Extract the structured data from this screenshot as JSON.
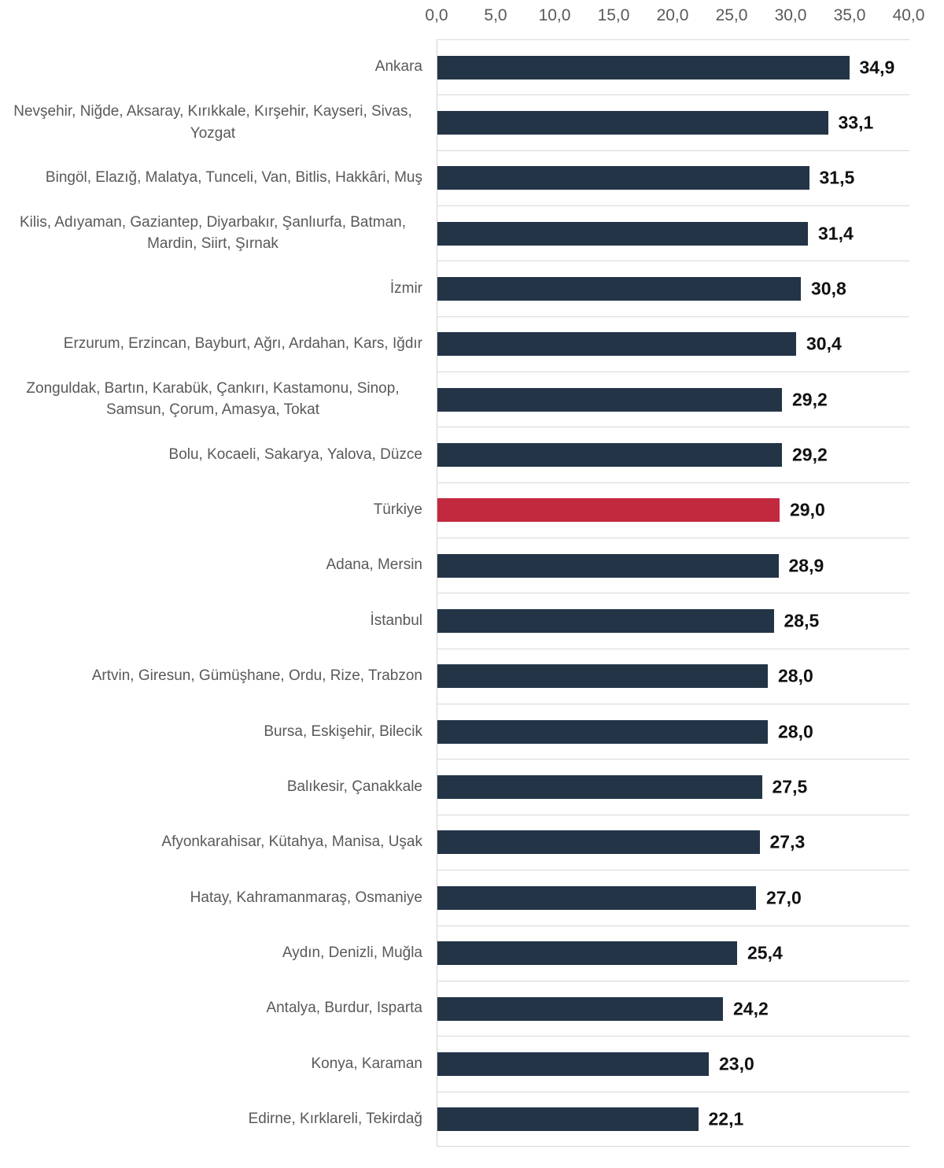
{
  "chart_data": {
    "type": "bar",
    "orientation": "horizontal",
    "title": "",
    "xlabel": "",
    "ylabel": "",
    "xlim": [
      0,
      40
    ],
    "x_ticks": [
      "0,0",
      "5,0",
      "10,0",
      "15,0",
      "20,0",
      "25,0",
      "30,0",
      "35,0",
      "40,0"
    ],
    "grid": "horizontal category separators",
    "legend": "none",
    "categories": [
      "Ankara",
      "Nevşehir, Niğde, Aksaray, Kırıkkale, Kırşehir, Kayseri, Sivas, Yozgat",
      "Bingöl, Elazığ, Malatya, Tunceli, Van, Bitlis, Hakkâri, Muş",
      "Kilis, Adıyaman, Gaziantep, Diyarbakır, Şanlıurfa, Batman, Mardin, Siirt, Şırnak",
      "İzmir",
      "Erzurum, Erzincan, Bayburt, Ağrı, Ardahan, Kars, Iğdır",
      "Zonguldak, Bartın, Karabük, Çankırı, Kastamonu, Sinop, Samsun, Çorum, Amasya, Tokat",
      "Bolu, Kocaeli, Sakarya, Yalova, Düzce",
      "Türkiye",
      "Adana, Mersin",
      "İstanbul",
      "Artvin, Giresun, Gümüşhane, Ordu, Rize, Trabzon",
      "Bursa, Eskişehir, Bilecik",
      "Balıkesir, Çanakkale",
      "Afyonkarahisar, Kütahya, Manisa, Uşak",
      "Hatay, Kahramanmaraş, Osmaniye",
      "Aydın, Denizli, Muğla",
      "Antalya, Burdur, Isparta",
      "Konya, Karaman",
      "Edirne, Kırklareli, Tekirdağ"
    ],
    "values": [
      34.9,
      33.1,
      31.5,
      31.4,
      30.8,
      30.4,
      29.2,
      29.2,
      29.0,
      28.9,
      28.5,
      28.0,
      28.0,
      27.5,
      27.3,
      27.0,
      25.4,
      24.2,
      23.0,
      22.1
    ],
    "value_labels": [
      "34,9",
      "33,1",
      "31,5",
      "31,4",
      "30,8",
      "30,4",
      "29,2",
      "29,2",
      "29,0",
      "28,9",
      "28,5",
      "28,0",
      "28,0",
      "27,5",
      "27,3",
      "27,0",
      "25,4",
      "24,2",
      "23,0",
      "22,1"
    ],
    "highlight_category": "Türkiye",
    "colors": {
      "bar": "#233447",
      "highlight": "#C2293E",
      "grid_line": "#D9D9D9",
      "axis_line": "#D0D0D0",
      "category_text": "#595959",
      "tick_text": "#595959",
      "value_text": "#111111"
    }
  }
}
